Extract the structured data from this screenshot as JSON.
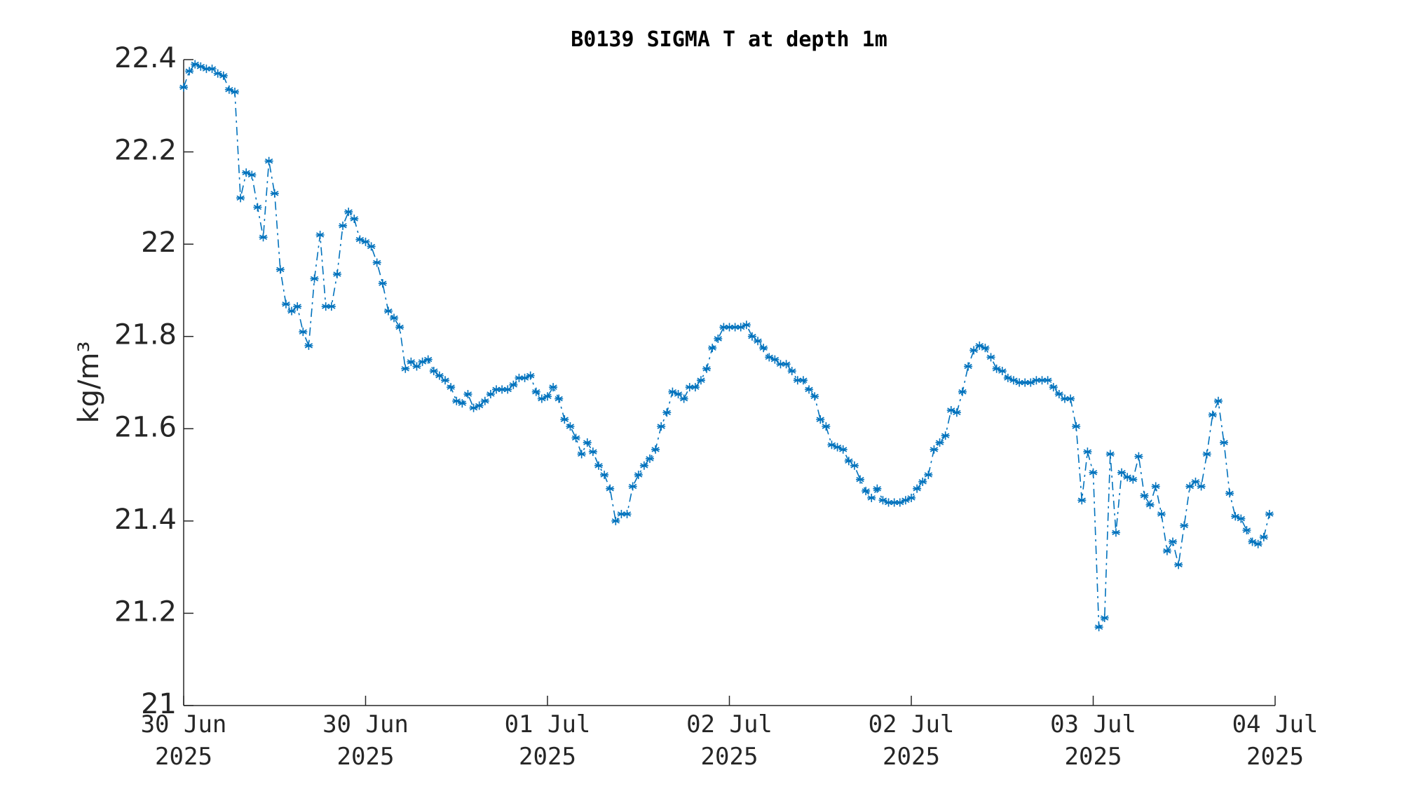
{
  "chart_data": {
    "type": "line",
    "title": "B0139 SIGMA T at depth 1m",
    "y_label": "kg/m³",
    "x": [
      0,
      0.5,
      1,
      1.5,
      2,
      2.5,
      3,
      3.5,
      4,
      4.5,
      5,
      5.5,
      6,
      6.5,
      7,
      7.5,
      8,
      8.5,
      9,
      9.5,
      10,
      10.5,
      11,
      11.5,
      12,
      12.5,
      13,
      13.5,
      14,
      14.5,
      15,
      15.5,
      16,
      16.5,
      17,
      17.5,
      18,
      18.5,
      19,
      19.5,
      20,
      20.5,
      21,
      21.5,
      22,
      22.5,
      23,
      23.5,
      24,
      24.5,
      25,
      25.5,
      26,
      26.5,
      27,
      27.5,
      28,
      28.5,
      29,
      29.5,
      30,
      30.5,
      31,
      31.5,
      32,
      32.5,
      33,
      33.5,
      34,
      34.5,
      35,
      35.5,
      36,
      36.5,
      37,
      37.5,
      38,
      38.5,
      39,
      39.5,
      40,
      40.5,
      41,
      41.5,
      42,
      42.5,
      43,
      43.5,
      44,
      44.5,
      45,
      45.5,
      46,
      46.5,
      47,
      47.5,
      48,
      48.5,
      49,
      49.5,
      50,
      50.5,
      51,
      51.5,
      52,
      52.5,
      53,
      53.5,
      54,
      54.5,
      55,
      55.5,
      56,
      56.5,
      57,
      57.5,
      58,
      58.5,
      59,
      59.5,
      60,
      60.5,
      61,
      61.5,
      62,
      62.5,
      63,
      63.5,
      64,
      64.5,
      65,
      65.5,
      66,
      66.5,
      67,
      67.5,
      68,
      68.5,
      69,
      69.5,
      70,
      70.5,
      71,
      71.5,
      72,
      72.5,
      73,
      73.5,
      74,
      74.5,
      75,
      75.5,
      76,
      76.5,
      77,
      77.5,
      78,
      78.5,
      79,
      79.5,
      80,
      80.5,
      81,
      81.5,
      82,
      82.5,
      83,
      83.5,
      84,
      84.5,
      85,
      85.5,
      86,
      86.5,
      87,
      87.5,
      88,
      88.5,
      89,
      89.5,
      90,
      90.5,
      91,
      91.5,
      92,
      92.5,
      93,
      93.5,
      94,
      94.5,
      95,
      95.5
    ],
    "series": [
      {
        "name": "SIGMA T",
        "color": "#0072bd",
        "values": [
          22.34,
          22.375,
          22.39,
          22.385,
          22.38,
          22.38,
          22.37,
          22.365,
          22.335,
          22.33,
          22.1,
          22.155,
          22.15,
          22.08,
          22.015,
          22.18,
          22.11,
          21.945,
          21.87,
          21.855,
          21.865,
          21.81,
          21.78,
          21.925,
          22.02,
          21.865,
          21.865,
          21.935,
          22.04,
          22.07,
          22.055,
          22.01,
          22.005,
          21.995,
          21.96,
          21.915,
          21.855,
          21.84,
          21.82,
          21.73,
          21.745,
          21.735,
          21.745,
          21.75,
          21.725,
          21.715,
          21.705,
          21.69,
          21.66,
          21.655,
          21.675,
          21.645,
          21.65,
          21.66,
          21.675,
          21.685,
          21.685,
          21.685,
          21.695,
          21.71,
          21.71,
          21.715,
          21.68,
          21.665,
          21.67,
          21.69,
          21.665,
          21.62,
          21.605,
          21.58,
          21.545,
          21.57,
          21.55,
          21.52,
          21.5,
          21.47,
          21.4,
          21.415,
          21.415,
          21.475,
          21.5,
          21.52,
          21.535,
          21.555,
          21.605,
          21.635,
          21.68,
          21.675,
          21.665,
          21.69,
          21.69,
          21.705,
          21.73,
          21.775,
          21.795,
          21.82,
          21.82,
          21.82,
          21.82,
          21.825,
          21.8,
          21.79,
          21.775,
          21.755,
          21.75,
          21.74,
          21.74,
          21.725,
          21.705,
          21.705,
          21.685,
          21.67,
          21.62,
          21.605,
          21.565,
          21.56,
          21.555,
          21.53,
          21.52,
          21.49,
          21.465,
          21.45,
          21.47,
          21.445,
          21.44,
          21.44,
          21.44,
          21.445,
          21.45,
          21.47,
          21.485,
          21.5,
          21.555,
          21.57,
          21.585,
          21.64,
          21.635,
          21.68,
          21.735,
          21.77,
          21.78,
          21.775,
          21.755,
          21.73,
          21.725,
          21.71,
          21.705,
          21.7,
          21.7,
          21.7,
          21.705,
          21.705,
          21.705,
          21.69,
          21.675,
          21.665,
          21.665,
          21.605,
          21.445,
          21.55,
          21.505,
          21.17,
          21.19,
          21.545,
          21.375,
          21.505,
          21.495,
          21.49,
          21.54,
          21.455,
          21.435,
          21.475,
          21.415,
          21.335,
          21.355,
          21.305,
          21.39,
          21.475,
          21.485,
          21.475,
          21.545,
          21.63,
          21.66,
          21.57,
          21.46,
          21.41,
          21.405,
          21.38,
          21.355,
          21.35,
          21.365,
          21.415
        ]
      }
    ],
    "xlim": [
      0,
      96
    ],
    "xticks": [
      {
        "value": 0,
        "label": "30 Jun\n2025"
      },
      {
        "value": 16,
        "label": "30 Jun\n2025"
      },
      {
        "value": 32,
        "label": "01 Jul\n2025"
      },
      {
        "value": 48,
        "label": "02 Jul\n2025"
      },
      {
        "value": 64,
        "label": "02 Jul\n2025"
      },
      {
        "value": 80,
        "label": "03 Jul\n2025"
      },
      {
        "value": 96,
        "label": "04 Jul\n2025"
      }
    ],
    "ylim": [
      21,
      22.4
    ],
    "yticks": [
      21,
      21.2,
      21.4,
      21.6,
      21.8,
      22,
      22.2,
      22.4
    ],
    "grid": false
  }
}
